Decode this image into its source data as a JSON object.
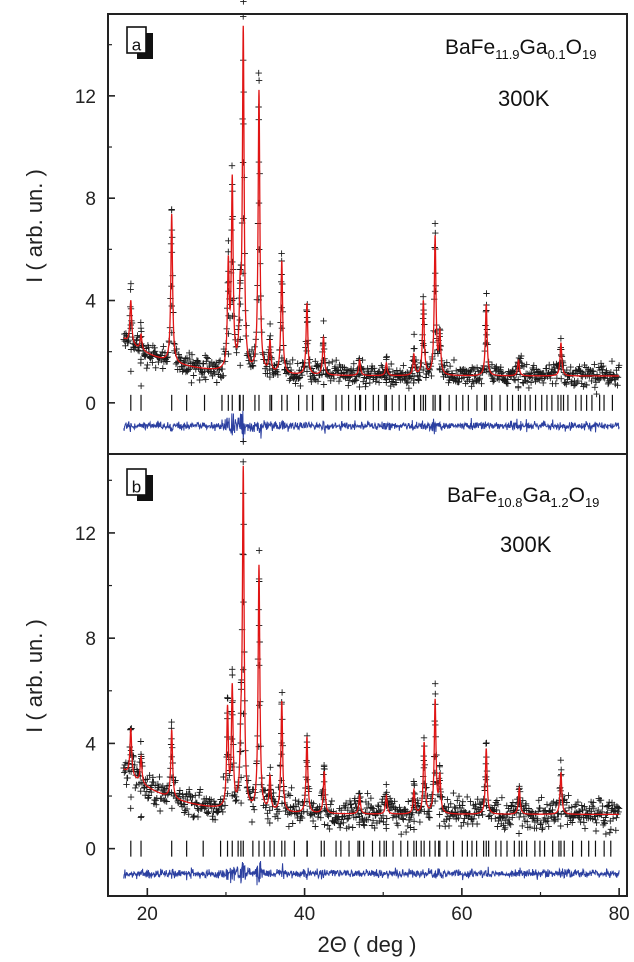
{
  "chart_data": [
    {
      "panel": "a",
      "type": "scatter",
      "compound": {
        "base": "BaFe",
        "sub1": "11.9",
        "mid": "Ga",
        "sub2": "0.1",
        "tail": "O",
        "sub3": "19"
      },
      "temperature": "300K",
      "ylabel": "I ( arb. un. )",
      "xlabel": "",
      "xlim": [
        15,
        81
      ],
      "ylim": [
        -2.0,
        15.2
      ],
      "yticks": [
        0,
        4,
        8,
        12
      ],
      "ytick_labels": [
        "0",
        "4",
        "8",
        "12"
      ],
      "background": {
        "b0": 1.05,
        "amp": 1.45,
        "decay": 6.0,
        "x0": 17.0
      },
      "noise_sigma": 0.22,
      "peaks": [
        {
          "x": 17.9,
          "h": 1.7
        },
        {
          "x": 19.2,
          "h": 0.6
        },
        {
          "x": 23.1,
          "h": 5.8
        },
        {
          "x": 30.3,
          "h": 4.0
        },
        {
          "x": 30.8,
          "h": 7.3
        },
        {
          "x": 31.8,
          "h": 2.5
        },
        {
          "x": 32.2,
          "h": 13.2
        },
        {
          "x": 34.2,
          "h": 11.0
        },
        {
          "x": 35.6,
          "h": 1.2
        },
        {
          "x": 37.1,
          "h": 4.4
        },
        {
          "x": 40.3,
          "h": 2.8
        },
        {
          "x": 42.4,
          "h": 1.5
        },
        {
          "x": 47.0,
          "h": 0.6
        },
        {
          "x": 50.4,
          "h": 0.5
        },
        {
          "x": 53.9,
          "h": 0.8
        },
        {
          "x": 55.1,
          "h": 2.9
        },
        {
          "x": 56.6,
          "h": 5.4
        },
        {
          "x": 57.2,
          "h": 1.6
        },
        {
          "x": 63.1,
          "h": 2.8
        },
        {
          "x": 67.2,
          "h": 0.6
        },
        {
          "x": 72.6,
          "h": 1.3
        }
      ],
      "bragg_offset": 0,
      "difference_offset": -0.9,
      "colors": {
        "observed": "#1a1a1a",
        "calculated": "#e01515",
        "bragg": "#111111",
        "difference": "#2b3fa0"
      }
    },
    {
      "panel": "b",
      "type": "scatter",
      "compound": {
        "base": "BaFe",
        "sub1": "10.8",
        "mid": "Ga",
        "sub2": "1.2",
        "tail": "O",
        "sub3": "19"
      },
      "temperature": "300K",
      "ylabel": "I ( arb. un. )",
      "xlabel": "2Θ ( deg )",
      "xlim": [
        15,
        81
      ],
      "ylim": [
        -1.8,
        15.0
      ],
      "yticks": [
        0,
        4,
        8,
        12
      ],
      "ytick_labels": [
        "0",
        "4",
        "8",
        "12"
      ],
      "xticks": [
        20,
        40,
        60,
        80
      ],
      "xtick_labels": [
        "20",
        "40",
        "60",
        "80"
      ],
      "background": {
        "b0": 1.3,
        "amp": 1.7,
        "decay": 6.0,
        "x0": 17.0
      },
      "noise_sigma": 0.28,
      "peaks": [
        {
          "x": 17.9,
          "h": 1.8
        },
        {
          "x": 19.2,
          "h": 1.0
        },
        {
          "x": 23.1,
          "h": 2.6
        },
        {
          "x": 30.2,
          "h": 3.7
        },
        {
          "x": 30.8,
          "h": 4.5
        },
        {
          "x": 31.9,
          "h": 2.0
        },
        {
          "x": 32.2,
          "h": 12.7
        },
        {
          "x": 34.2,
          "h": 9.3
        },
        {
          "x": 35.6,
          "h": 1.3
        },
        {
          "x": 37.1,
          "h": 4.2
        },
        {
          "x": 40.3,
          "h": 2.9
        },
        {
          "x": 42.5,
          "h": 1.6
        },
        {
          "x": 47.0,
          "h": 0.7
        },
        {
          "x": 50.4,
          "h": 0.7
        },
        {
          "x": 53.9,
          "h": 0.9
        },
        {
          "x": 55.2,
          "h": 2.7
        },
        {
          "x": 56.6,
          "h": 4.3
        },
        {
          "x": 57.2,
          "h": 1.4
        },
        {
          "x": 63.1,
          "h": 2.5
        },
        {
          "x": 67.3,
          "h": 1.0
        },
        {
          "x": 72.6,
          "h": 1.6
        }
      ],
      "bragg_offset": 0,
      "difference_offset": -0.95,
      "colors": {
        "observed": "#1a1a1a",
        "calculated": "#e01515",
        "bragg": "#111111",
        "difference": "#2b3fa0"
      }
    }
  ]
}
